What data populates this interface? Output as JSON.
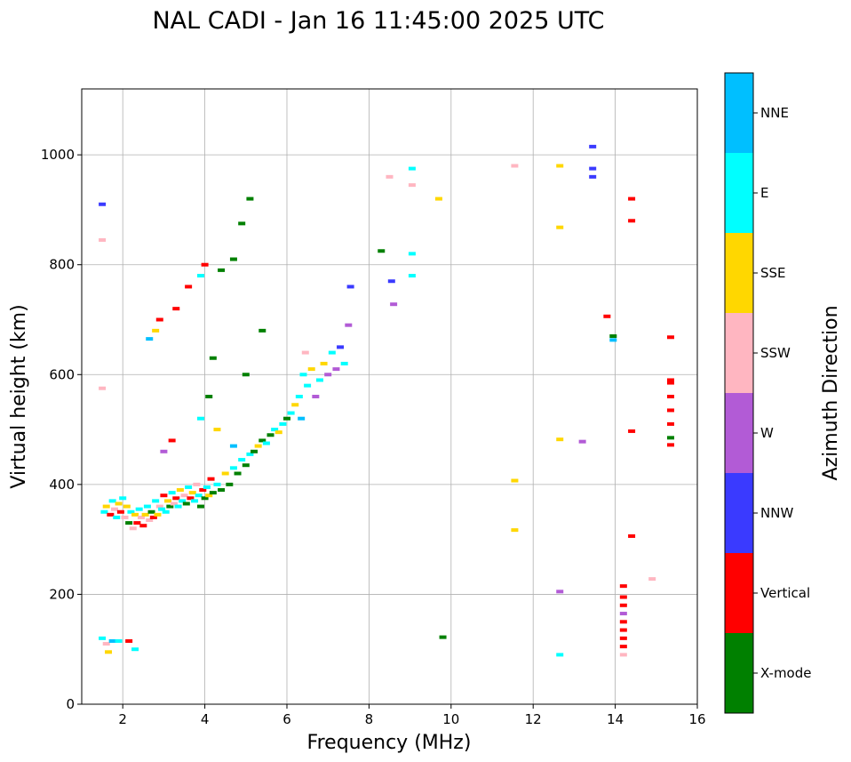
{
  "chart_data": {
    "type": "scatter",
    "title": "NAL CADI - Jan 16 11:45:00 2025 UTC",
    "xlabel": "Frequency (MHz)",
    "ylabel": "Virtual height (km)",
    "xlim": [
      1,
      16
    ],
    "ylim": [
      0,
      1120
    ],
    "xticks": [
      2,
      4,
      6,
      8,
      10,
      12,
      14,
      16
    ],
    "yticks": [
      0,
      200,
      400,
      600,
      800,
      1000
    ],
    "grid": true,
    "colorbar": {
      "label": "Azimuth Direction",
      "categories": [
        {
          "name": "X-mode",
          "color": "#008000"
        },
        {
          "name": "Vertical",
          "color": "#ff0000"
        },
        {
          "name": "NNW",
          "color": "#3a3aff"
        },
        {
          "name": "W",
          "color": "#b25bd6"
        },
        {
          "name": "SSW",
          "color": "#ffb6c1"
        },
        {
          "name": "SSE",
          "color": "#ffd700"
        },
        {
          "name": "E",
          "color": "#00ffff"
        },
        {
          "name": "NNE",
          "color": "#00bfff"
        }
      ]
    },
    "points": [
      [
        1.55,
        350,
        "E"
      ],
      [
        1.6,
        360,
        "SSE"
      ],
      [
        1.7,
        345,
        "Vertical"
      ],
      [
        1.75,
        370,
        "E"
      ],
      [
        1.8,
        355,
        "SSW"
      ],
      [
        1.85,
        340,
        "E"
      ],
      [
        1.9,
        365,
        "SSE"
      ],
      [
        1.95,
        350,
        "Vertical"
      ],
      [
        2.0,
        375,
        "E"
      ],
      [
        2.05,
        340,
        "SSW"
      ],
      [
        2.1,
        360,
        "SSE"
      ],
      [
        2.15,
        330,
        "X-mode"
      ],
      [
        2.2,
        350,
        "E"
      ],
      [
        2.25,
        320,
        "SSW"
      ],
      [
        2.3,
        345,
        "SSE"
      ],
      [
        2.35,
        330,
        "Vertical"
      ],
      [
        2.4,
        355,
        "E"
      ],
      [
        2.45,
        340,
        "SSW"
      ],
      [
        2.5,
        325,
        "Vertical"
      ],
      [
        2.55,
        345,
        "SSE"
      ],
      [
        2.6,
        360,
        "E"
      ],
      [
        2.65,
        335,
        "SSW"
      ],
      [
        2.7,
        350,
        "X-mode"
      ],
      [
        2.75,
        340,
        "Vertical"
      ],
      [
        2.8,
        370,
        "E"
      ],
      [
        2.85,
        345,
        "SSE"
      ],
      [
        2.9,
        360,
        "SSW"
      ],
      [
        2.95,
        355,
        "E"
      ],
      [
        3.0,
        380,
        "Vertical"
      ],
      [
        3.05,
        350,
        "E"
      ],
      [
        3.1,
        370,
        "SSE"
      ],
      [
        3.15,
        360,
        "X-mode"
      ],
      [
        3.2,
        385,
        "E"
      ],
      [
        3.25,
        365,
        "SSW"
      ],
      [
        3.3,
        375,
        "Vertical"
      ],
      [
        3.35,
        360,
        "E"
      ],
      [
        3.4,
        390,
        "SSE"
      ],
      [
        3.45,
        370,
        "E"
      ],
      [
        3.5,
        380,
        "SSW"
      ],
      [
        3.55,
        365,
        "X-mode"
      ],
      [
        3.6,
        395,
        "E"
      ],
      [
        3.65,
        375,
        "Vertical"
      ],
      [
        3.7,
        385,
        "SSE"
      ],
      [
        3.75,
        370,
        "E"
      ],
      [
        3.8,
        400,
        "SSW"
      ],
      [
        3.85,
        380,
        "E"
      ],
      [
        3.9,
        360,
        "X-mode"
      ],
      [
        3.95,
        390,
        "Vertical"
      ],
      [
        4.0,
        375,
        "X-mode"
      ],
      [
        4.05,
        395,
        "E"
      ],
      [
        4.1,
        380,
        "SSE"
      ],
      [
        4.15,
        410,
        "Vertical"
      ],
      [
        4.2,
        385,
        "X-mode"
      ],
      [
        4.3,
        400,
        "E"
      ],
      [
        4.4,
        390,
        "X-mode"
      ],
      [
        4.5,
        420,
        "SSE"
      ],
      [
        4.6,
        400,
        "X-mode"
      ],
      [
        4.7,
        430,
        "E"
      ],
      [
        4.8,
        420,
        "X-mode"
      ],
      [
        4.9,
        445,
        "E"
      ],
      [
        5.0,
        435,
        "X-mode"
      ],
      [
        5.1,
        455,
        "E"
      ],
      [
        5.2,
        460,
        "X-mode"
      ],
      [
        5.3,
        470,
        "SSE"
      ],
      [
        5.4,
        480,
        "X-mode"
      ],
      [
        5.5,
        475,
        "E"
      ],
      [
        5.6,
        490,
        "X-mode"
      ],
      [
        5.7,
        500,
        "E"
      ],
      [
        5.8,
        495,
        "SSE"
      ],
      [
        5.9,
        510,
        "E"
      ],
      [
        6.0,
        520,
        "X-mode"
      ],
      [
        6.1,
        530,
        "E"
      ],
      [
        6.2,
        545,
        "SSE"
      ],
      [
        6.3,
        560,
        "E"
      ],
      [
        6.35,
        520,
        "NNE"
      ],
      [
        6.4,
        600,
        "E"
      ],
      [
        6.45,
        640,
        "SSW"
      ],
      [
        6.5,
        580,
        "E"
      ],
      [
        6.6,
        610,
        "SSE"
      ],
      [
        6.7,
        560,
        "W"
      ],
      [
        6.8,
        590,
        "E"
      ],
      [
        6.9,
        620,
        "SSE"
      ],
      [
        7.0,
        600,
        "W"
      ],
      [
        7.1,
        640,
        "E"
      ],
      [
        7.2,
        610,
        "W"
      ],
      [
        7.3,
        650,
        "NNW"
      ],
      [
        7.4,
        620,
        "E"
      ],
      [
        7.5,
        690,
        "W"
      ],
      [
        7.55,
        760,
        "NNW"
      ],
      [
        5.0,
        600,
        "X-mode"
      ],
      [
        5.4,
        680,
        "X-mode"
      ],
      [
        4.2,
        630,
        "X-mode"
      ],
      [
        4.1,
        560,
        "X-mode"
      ],
      [
        3.9,
        520,
        "E"
      ],
      [
        4.3,
        500,
        "SSE"
      ],
      [
        4.7,
        470,
        "NNE"
      ],
      [
        3.2,
        480,
        "Vertical"
      ],
      [
        3.0,
        460,
        "W"
      ],
      [
        2.9,
        700,
        "Vertical"
      ],
      [
        3.3,
        720,
        "Vertical"
      ],
      [
        3.6,
        760,
        "Vertical"
      ],
      [
        3.9,
        780,
        "E"
      ],
      [
        4.0,
        800,
        "Vertical"
      ],
      [
        2.8,
        680,
        "SSE"
      ],
      [
        2.65,
        665,
        "NNE"
      ],
      [
        4.4,
        790,
        "X-mode"
      ],
      [
        4.7,
        810,
        "X-mode"
      ],
      [
        4.9,
        875,
        "X-mode"
      ],
      [
        5.1,
        920,
        "X-mode"
      ],
      [
        1.5,
        910,
        "NNW"
      ],
      [
        1.5,
        845,
        "SSW"
      ],
      [
        1.5,
        575,
        "SSW"
      ],
      [
        1.5,
        120,
        "E"
      ],
      [
        1.6,
        110,
        "SSW"
      ],
      [
        1.65,
        95,
        "SSE"
      ],
      [
        1.75,
        115,
        "NNE"
      ],
      [
        1.9,
        115,
        "E"
      ],
      [
        2.15,
        115,
        "Vertical"
      ],
      [
        2.3,
        100,
        "E"
      ],
      [
        8.3,
        825,
        "X-mode"
      ],
      [
        8.5,
        960,
        "SSW"
      ],
      [
        8.55,
        770,
        "NNW"
      ],
      [
        8.6,
        728,
        "W"
      ],
      [
        9.05,
        975,
        "E"
      ],
      [
        9.05,
        945,
        "SSW"
      ],
      [
        9.05,
        820,
        "E"
      ],
      [
        9.05,
        780,
        "E"
      ],
      [
        9.7,
        920,
        "SSE"
      ],
      [
        9.8,
        122,
        "X-mode"
      ],
      [
        11.55,
        980,
        "SSW"
      ],
      [
        11.55,
        407,
        "SSE"
      ],
      [
        11.55,
        317,
        "SSE"
      ],
      [
        12.65,
        980,
        "SSE"
      ],
      [
        12.65,
        868,
        "SSE"
      ],
      [
        12.65,
        482,
        "SSE"
      ],
      [
        12.65,
        205,
        "W"
      ],
      [
        12.65,
        90,
        "E"
      ],
      [
        13.2,
        478,
        "W"
      ],
      [
        13.45,
        1015,
        "NNW"
      ],
      [
        13.45,
        975,
        "NNW"
      ],
      [
        13.45,
        960,
        "NNW"
      ],
      [
        13.8,
        706,
        "Vertical"
      ],
      [
        13.95,
        670,
        "X-mode"
      ],
      [
        13.95,
        663,
        "NNE"
      ],
      [
        14.2,
        215,
        "Vertical"
      ],
      [
        14.2,
        195,
        "Vertical"
      ],
      [
        14.2,
        180,
        "Vertical"
      ],
      [
        14.2,
        165,
        "W"
      ],
      [
        14.2,
        150,
        "Vertical"
      ],
      [
        14.2,
        135,
        "Vertical"
      ],
      [
        14.2,
        120,
        "Vertical"
      ],
      [
        14.2,
        105,
        "Vertical"
      ],
      [
        14.2,
        90,
        "SSW"
      ],
      [
        14.4,
        920,
        "Vertical"
      ],
      [
        14.4,
        880,
        "Vertical"
      ],
      [
        14.4,
        497,
        "Vertical"
      ],
      [
        14.4,
        306,
        "Vertical"
      ],
      [
        14.9,
        228,
        "SSW"
      ],
      [
        15.35,
        668,
        "Vertical"
      ],
      [
        15.35,
        590,
        "Vertical"
      ],
      [
        15.35,
        585,
        "Vertical"
      ],
      [
        15.35,
        560,
        "Vertical"
      ],
      [
        15.35,
        535,
        "Vertical"
      ],
      [
        15.35,
        510,
        "Vertical"
      ],
      [
        15.35,
        485,
        "X-mode"
      ],
      [
        15.35,
        472,
        "Vertical"
      ]
    ]
  }
}
